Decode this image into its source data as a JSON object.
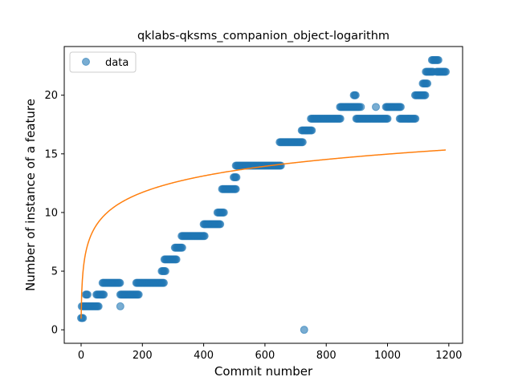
{
  "chart_data": {
    "type": "scatter",
    "title": "qklabs-qksms_companion_object-logarithm",
    "xlabel": "Commit number",
    "ylabel": "Number of instance of a feature",
    "xlim": [
      -55,
      1245
    ],
    "ylim": [
      -1.15,
      24.15
    ],
    "xticks": [
      0,
      200,
      400,
      600,
      800,
      1000,
      1200
    ],
    "yticks": [
      0,
      5,
      10,
      15,
      20
    ],
    "legend": {
      "position": "top-left",
      "entries": [
        "data"
      ]
    },
    "colors": {
      "data": "#1f77b4",
      "fit": "#ff7f0e"
    },
    "series": [
      {
        "name": "data",
        "kind": "scatter",
        "runs": [
          {
            "y": 1,
            "x0": 0,
            "x1": 8
          },
          {
            "y": 2,
            "x0": 2,
            "x1": 3
          },
          {
            "y": 2,
            "x0": 6,
            "x1": 58
          },
          {
            "y": 3,
            "x0": 15,
            "x1": 22
          },
          {
            "y": 3,
            "x0": 50,
            "x1": 75
          },
          {
            "y": 4,
            "x0": 70,
            "x1": 128
          },
          {
            "y": 2,
            "x0": 128,
            "x1": 129
          },
          {
            "y": 3,
            "x0": 128,
            "x1": 188
          },
          {
            "y": 4,
            "x0": 180,
            "x1": 270
          },
          {
            "y": 5,
            "x0": 263,
            "x1": 275
          },
          {
            "y": 6,
            "x0": 272,
            "x1": 311
          },
          {
            "y": 7,
            "x0": 306,
            "x1": 332
          },
          {
            "y": 8,
            "x0": 328,
            "x1": 404
          },
          {
            "y": 9,
            "x0": 400,
            "x1": 455
          },
          {
            "y": 10,
            "x0": 445,
            "x1": 468
          },
          {
            "y": 12,
            "x0": 460,
            "x1": 505
          },
          {
            "y": 13,
            "x0": 498,
            "x1": 507
          },
          {
            "y": 14,
            "x0": 505,
            "x1": 652
          },
          {
            "y": 16,
            "x0": 648,
            "x1": 725
          },
          {
            "y": 0,
            "x0": 728,
            "x1": 729
          },
          {
            "y": 17,
            "x0": 720,
            "x1": 755
          },
          {
            "y": 18,
            "x0": 750,
            "x1": 848
          },
          {
            "y": 19,
            "x0": 845,
            "x1": 908
          },
          {
            "y": 20,
            "x0": 890,
            "x1": 898
          },
          {
            "y": 18,
            "x0": 898,
            "x1": 1002
          },
          {
            "y": 19,
            "x0": 913,
            "x1": 914
          },
          {
            "y": 19,
            "x0": 962,
            "x1": 963
          },
          {
            "y": 19,
            "x0": 995,
            "x1": 1045
          },
          {
            "y": 18,
            "x0": 1040,
            "x1": 1093
          },
          {
            "y": 20,
            "x0": 1090,
            "x1": 1123
          },
          {
            "y": 21,
            "x0": 1115,
            "x1": 1130
          },
          {
            "y": 22,
            "x0": 1125,
            "x1": 1150
          },
          {
            "y": 23,
            "x0": 1145,
            "x1": 1168
          },
          {
            "y": 22,
            "x0": 1160,
            "x1": 1190
          }
        ]
      },
      {
        "kind": "line",
        "model": "logarithm",
        "x_range": [
          0,
          1190
        ],
        "y_at_x1": 0.945,
        "slope_ln": 2.031
      }
    ]
  }
}
